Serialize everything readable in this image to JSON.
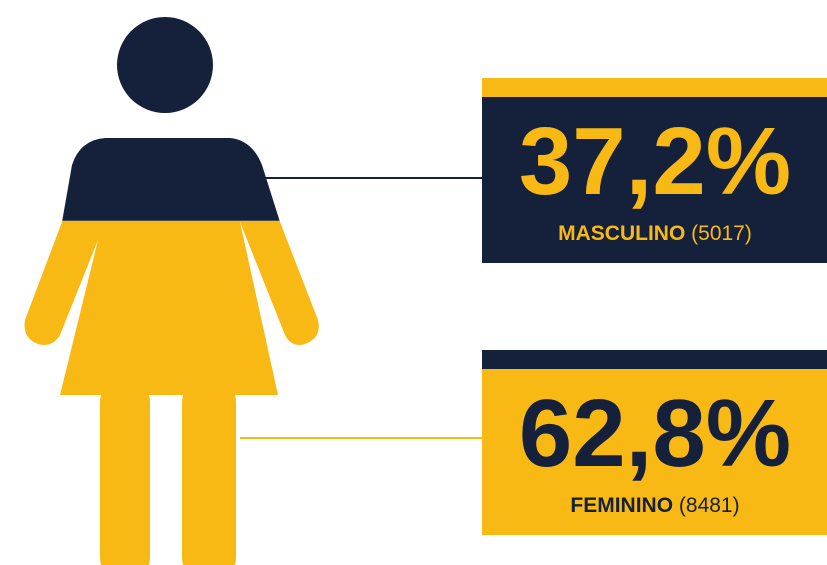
{
  "chart_data": {
    "type": "icon-fill",
    "categories": [
      "MASCULINO",
      "FEMININO"
    ],
    "values": [
      37.2,
      62.8
    ],
    "value_labels": [
      "37,2%",
      "62,8%"
    ],
    "counts": [
      5017,
      8481
    ],
    "count_labels": [
      "(5017)",
      "(8481)"
    ],
    "colors": [
      "#15213a",
      "#f9b915"
    ]
  }
}
